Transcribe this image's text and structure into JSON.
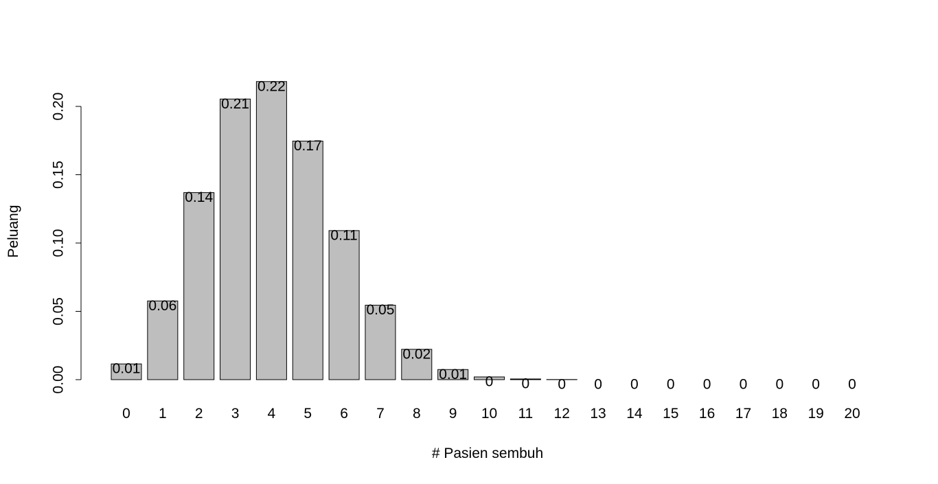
{
  "chart_data": {
    "type": "bar",
    "xlabel": "# Pasien sembuh",
    "ylabel": "Peluang",
    "ylim": [
      0,
      0.2
    ],
    "yticks": [
      "0.00",
      "0.05",
      "0.10",
      "0.15",
      "0.20"
    ],
    "bar_color": "#bebebe",
    "grid": false,
    "categories": [
      "0",
      "1",
      "2",
      "3",
      "4",
      "5",
      "6",
      "7",
      "8",
      "9",
      "10",
      "11",
      "12",
      "13",
      "14",
      "15",
      "16",
      "17",
      "18",
      "19",
      "20"
    ],
    "values": [
      0.0115,
      0.0576,
      0.1369,
      0.2054,
      0.2182,
      0.1746,
      0.1091,
      0.0545,
      0.0222,
      0.0074,
      0.002,
      0.0005,
      0.0001,
      0.0,
      0.0,
      0.0,
      0.0,
      0.0,
      0.0,
      0.0,
      0.0
    ],
    "labels": [
      "0.01",
      "0.06",
      "0.14",
      "0.21",
      "0.22",
      "0.17",
      "0.11",
      "0.05",
      "0.02",
      "0.01",
      "0",
      "0",
      "0",
      "0",
      "0",
      "0",
      "0",
      "0",
      "0",
      "0",
      "0"
    ]
  }
}
